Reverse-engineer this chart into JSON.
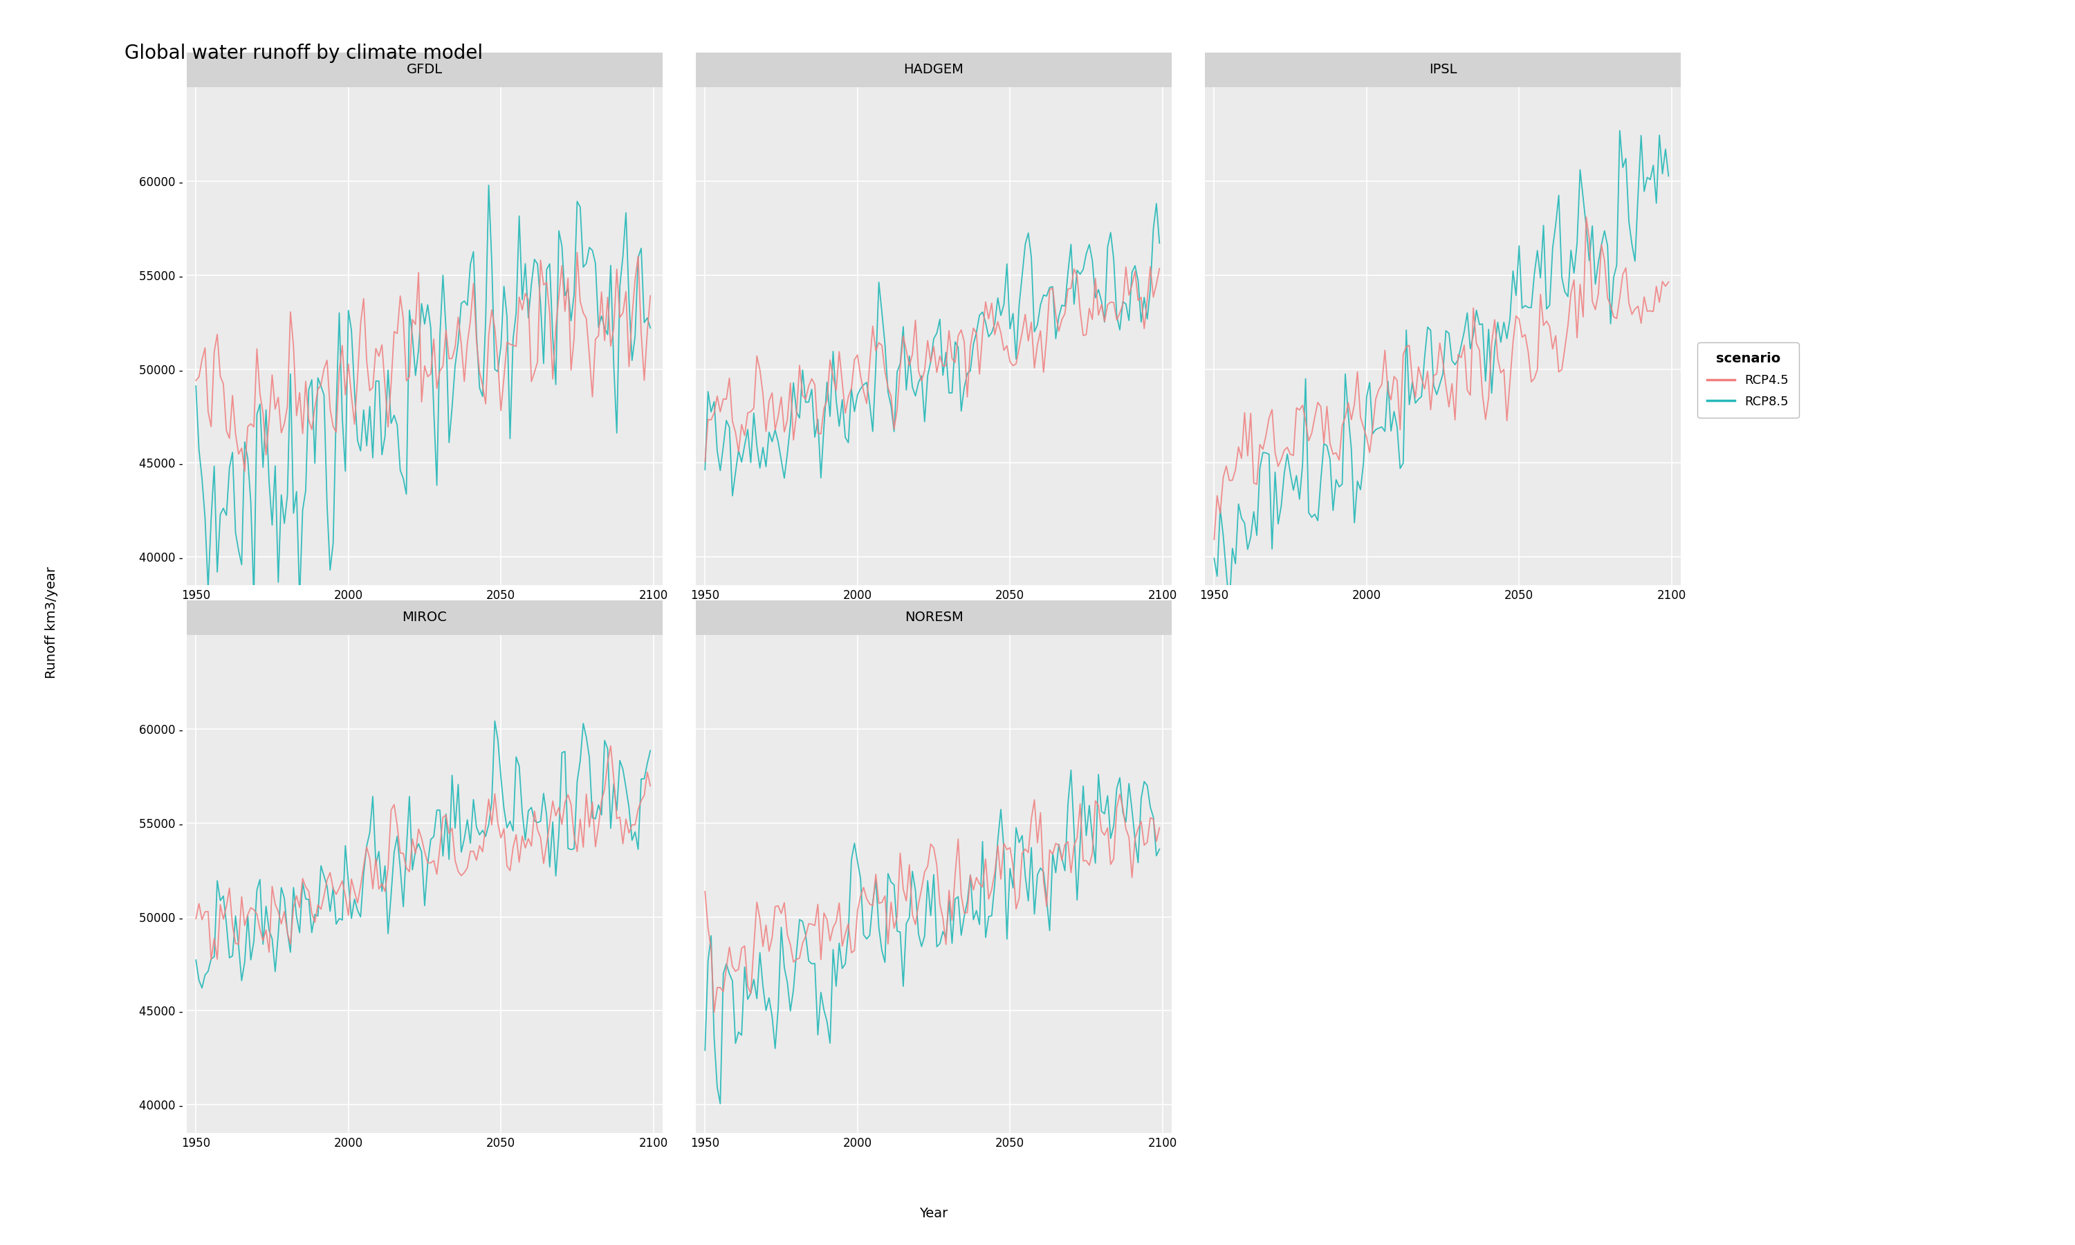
{
  "title": "Global water runoff by climate model",
  "models": [
    "GFDL",
    "HADGEM",
    "IPSL",
    "MIROC",
    "NORESM"
  ],
  "color_rcp45": "#F08080",
  "color_rcp85": "#26B8B8",
  "year_start": 1950,
  "year_end": 2099,
  "ylabel": "Runoff km3/year",
  "xlabel": "Year",
  "bg_color": "#EBEBEB",
  "strip_color": "#D3D3D3",
  "grid_color": "#FFFFFF",
  "yticks": [
    40000,
    45000,
    50000,
    55000,
    60000
  ],
  "xticks": [
    1950,
    2000,
    2050,
    2100
  ],
  "ylim": [
    38500,
    65000
  ],
  "xlim": [
    1947,
    2103
  ],
  "linewidth": 1.3,
  "title_fontsize": 20,
  "axis_label_fontsize": 14,
  "tick_fontsize": 12,
  "strip_fontsize": 14,
  "legend_title": "scenario",
  "legend_entries": [
    "RCP4.5",
    "RCP8.5"
  ]
}
